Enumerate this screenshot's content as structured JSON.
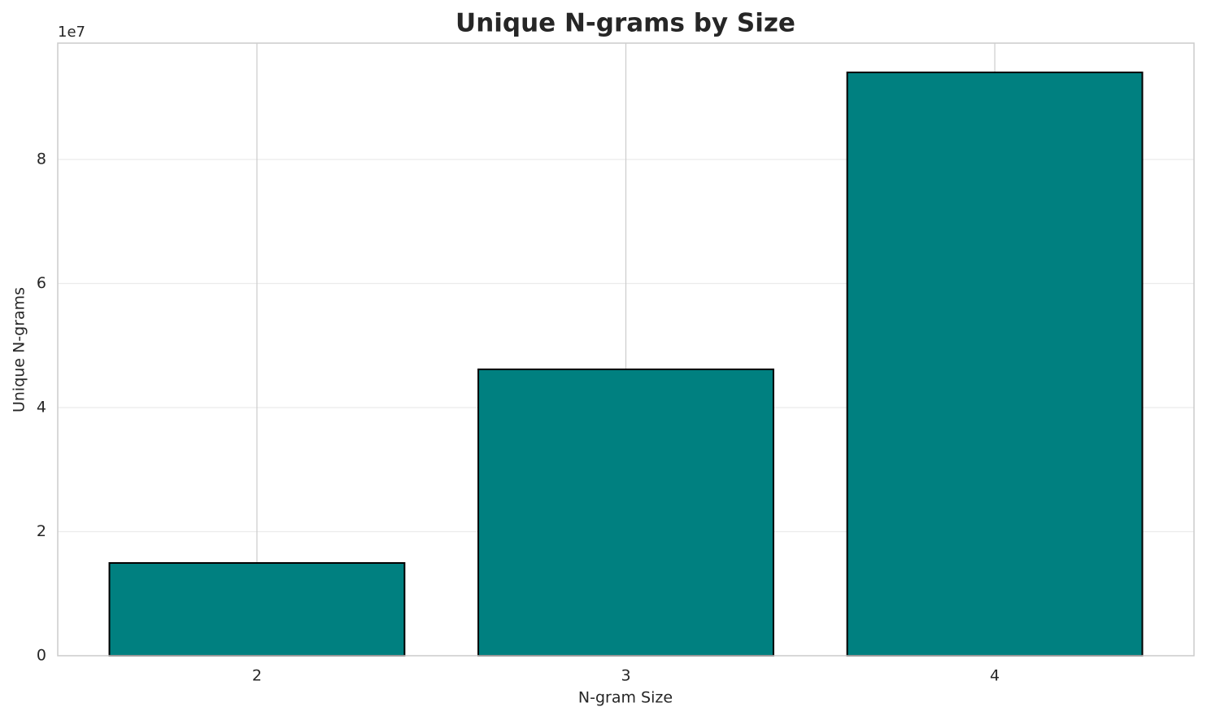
{
  "chart_data": {
    "type": "bar",
    "title": "Unique N-grams by Size",
    "x_label": "N-gram Size",
    "y_label": "Unique N-grams",
    "y_offset_label": "1e7",
    "categories": [
      "2",
      "3",
      "4"
    ],
    "values": [
      1.495,
      4.616,
      9.403
    ],
    "color": "#008080",
    "edgecolor": "#000000",
    "ylim": [
      0,
      9.875
    ],
    "yticks": [
      0,
      2,
      4,
      6,
      8
    ],
    "grid": true
  }
}
